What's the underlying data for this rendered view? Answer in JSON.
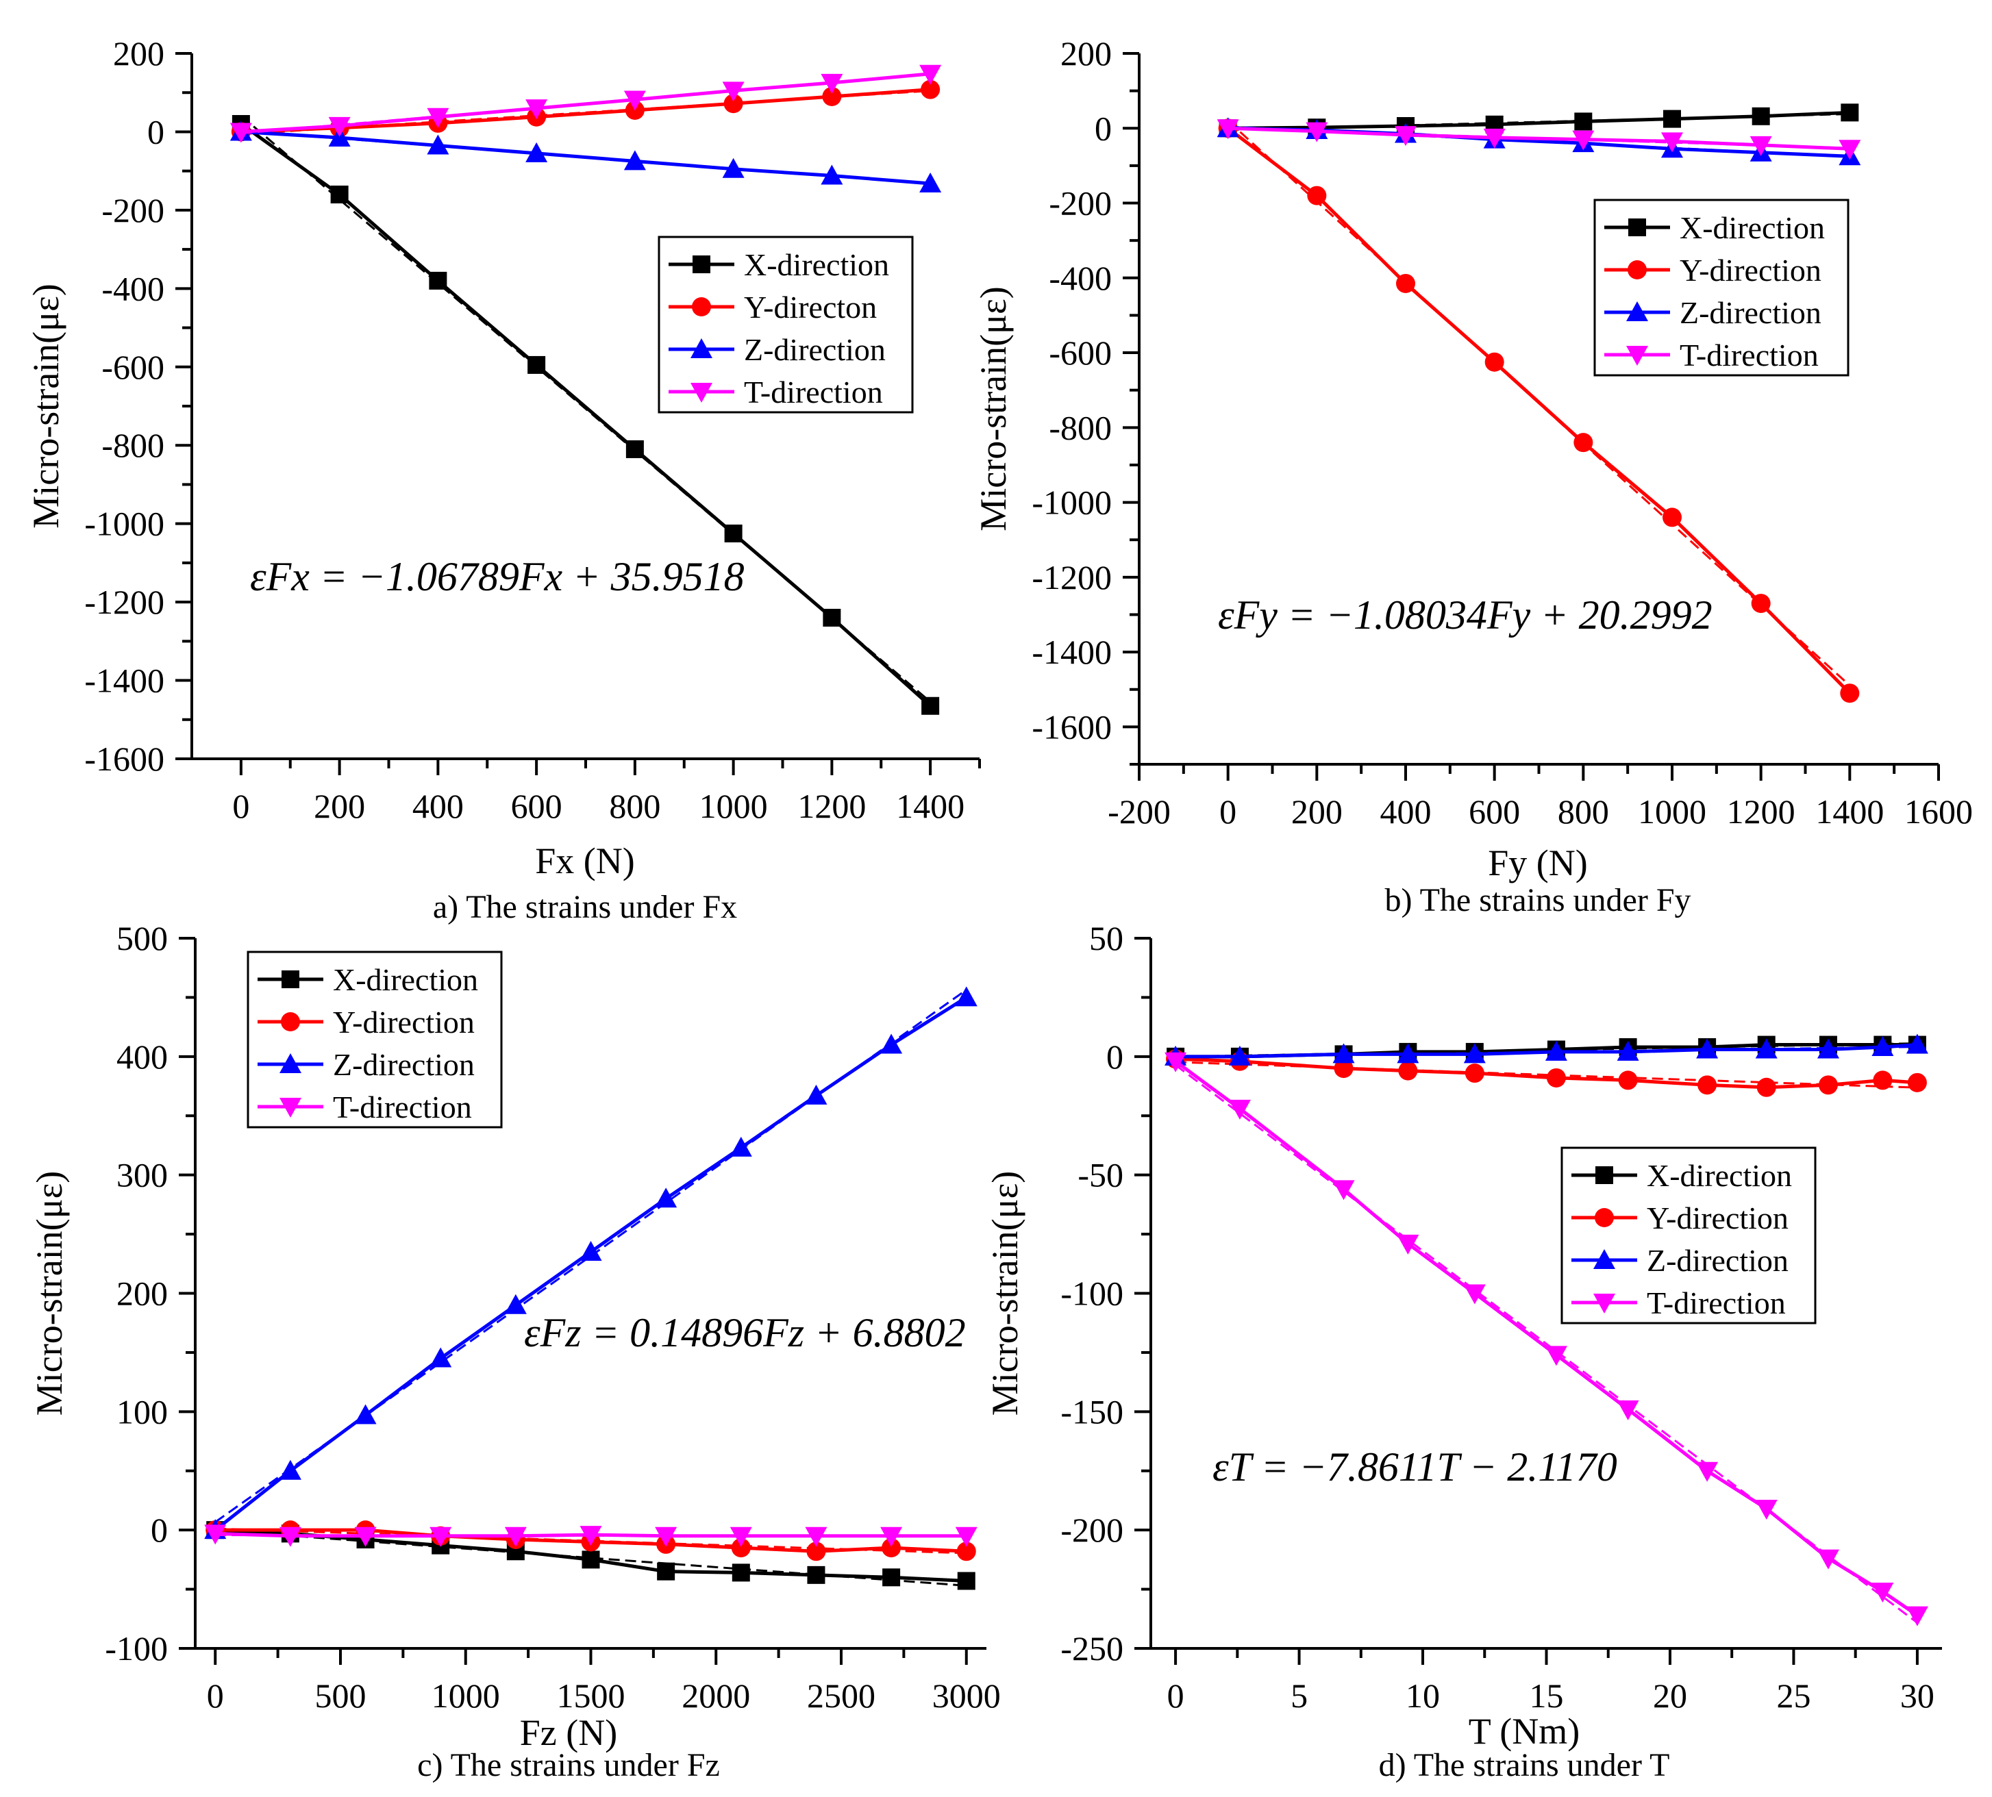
{
  "chart_data": [
    {
      "type": "line",
      "panel": "a",
      "caption": "a)  The strains under Fx",
      "xlabel": "Fx (N)",
      "ylabel": "Micro-strain(με)",
      "xlim": [
        -100,
        1500
      ],
      "ylim": [
        -1600,
        200
      ],
      "xticks": [
        0,
        200,
        400,
        600,
        800,
        1000,
        1200,
        1400
      ],
      "yticks": [
        200,
        0,
        -200,
        -400,
        -600,
        -800,
        -1000,
        -1200,
        -1400,
        -1600
      ],
      "equation": "εFx = −1.06789Fx + 35.9518",
      "legend_position": "middle-right",
      "series": [
        {
          "name": "X-direction",
          "color": "#000000",
          "marker": "square",
          "x": [
            0,
            200,
            400,
            600,
            800,
            1000,
            1200,
            1400
          ],
          "values": [
            20,
            -160,
            -380,
            -595,
            -810,
            -1025,
            -1240,
            -1465
          ]
        },
        {
          "name": "Y-directon",
          "color": "#ff0000",
          "marker": "circle",
          "x": [
            0,
            200,
            400,
            600,
            800,
            1000,
            1200,
            1400
          ],
          "values": [
            0,
            10,
            22,
            38,
            55,
            72,
            90,
            108
          ]
        },
        {
          "name": "Z-direction",
          "color": "#0000ff",
          "marker": "triangle-up",
          "x": [
            0,
            200,
            400,
            600,
            800,
            1000,
            1200,
            1400
          ],
          "values": [
            0,
            -15,
            -35,
            -55,
            -75,
            -95,
            -112,
            -132
          ]
        },
        {
          "name": "T-direction",
          "color": "#ff00ff",
          "marker": "triangle-down",
          "x": [
            0,
            200,
            400,
            600,
            800,
            1000,
            1200,
            1400
          ],
          "values": [
            0,
            15,
            38,
            60,
            82,
            105,
            125,
            148
          ]
        }
      ]
    },
    {
      "type": "line",
      "panel": "b",
      "caption": "b)  The strains under Fy",
      "xlabel": "Fy (N)",
      "ylabel": "Micro-strain(με)",
      "xlim": [
        -200,
        1600
      ],
      "ylim": [
        -1700,
        200
      ],
      "xticks": [
        -200,
        0,
        200,
        400,
        600,
        800,
        1000,
        1200,
        1400,
        1600
      ],
      "yticks": [
        200,
        0,
        -200,
        -400,
        -600,
        -800,
        -1000,
        -1200,
        -1400,
        -1600
      ],
      "equation": "εFy = −1.08034Fy + 20.2992",
      "legend_position": "top-right",
      "series": [
        {
          "name": "X-direction",
          "color": "#000000",
          "marker": "square",
          "x": [
            0,
            200,
            400,
            600,
            800,
            1000,
            1200,
            1400
          ],
          "values": [
            0,
            2,
            6,
            10,
            18,
            25,
            32,
            42
          ]
        },
        {
          "name": "Y-direction",
          "color": "#ff0000",
          "marker": "circle",
          "x": [
            0,
            200,
            400,
            600,
            800,
            1000,
            1200,
            1400
          ],
          "values": [
            0,
            -180,
            -415,
            -625,
            -840,
            -1040,
            -1270,
            -1510
          ]
        },
        {
          "name": "Z-direction",
          "color": "#0000ff",
          "marker": "triangle-up",
          "x": [
            0,
            200,
            400,
            600,
            800,
            1000,
            1200,
            1400
          ],
          "values": [
            0,
            -5,
            -15,
            -30,
            -40,
            -55,
            -65,
            -75
          ]
        },
        {
          "name": "T-direction",
          "color": "#ff00ff",
          "marker": "triangle-down",
          "x": [
            0,
            200,
            400,
            600,
            800,
            1000,
            1200,
            1400
          ],
          "values": [
            0,
            -8,
            -18,
            -25,
            -30,
            -35,
            -45,
            -55
          ]
        }
      ]
    },
    {
      "type": "line",
      "panel": "c",
      "caption": "c)  The strains under Fz",
      "xlabel": "Fz (N)",
      "ylabel": "Micro-strain(με)",
      "xlim": [
        -80,
        3080
      ],
      "ylim": [
        -100,
        500
      ],
      "xticks": [
        0,
        500,
        1000,
        1500,
        2000,
        2500,
        3000
      ],
      "yticks": [
        500,
        400,
        300,
        200,
        100,
        0,
        -100
      ],
      "equation": "εFz = 0.14896Fz + 6.8802",
      "legend_position": "top-left",
      "series": [
        {
          "name": "X-direction",
          "color": "#000000",
          "marker": "square",
          "x": [
            0,
            300,
            600,
            900,
            1200,
            1500,
            1800,
            2100,
            2400,
            2700,
            3000
          ],
          "values": [
            0,
            -3,
            -8,
            -13,
            -18,
            -25,
            -35,
            -36,
            -38,
            -40,
            -43
          ]
        },
        {
          "name": "Y-direction",
          "color": "#ff0000",
          "marker": "circle",
          "x": [
            0,
            300,
            600,
            900,
            1200,
            1500,
            1800,
            2100,
            2400,
            2700,
            3000
          ],
          "values": [
            0,
            0,
            0,
            -5,
            -8,
            -10,
            -12,
            -15,
            -18,
            -15,
            -18
          ]
        },
        {
          "name": "Z-direction",
          "color": "#0000ff",
          "marker": "triangle-up",
          "x": [
            0,
            300,
            600,
            900,
            1200,
            1500,
            1800,
            2100,
            2400,
            2700,
            3000
          ],
          "values": [
            0,
            50,
            97,
            145,
            190,
            235,
            280,
            323,
            367,
            410,
            450
          ]
        },
        {
          "name": "T-direction",
          "color": "#ff00ff",
          "marker": "triangle-down",
          "x": [
            0,
            300,
            600,
            900,
            1200,
            1500,
            1800,
            2100,
            2400,
            2700,
            3000
          ],
          "values": [
            -3,
            -5,
            -5,
            -5,
            -5,
            -4,
            -5,
            -5,
            -5,
            -5,
            -5
          ]
        }
      ]
    },
    {
      "type": "line",
      "panel": "d",
      "caption": "d)  The strains under T",
      "xlabel": "T (Nm)",
      "ylabel": "Micro-strain(με)",
      "xlim": [
        -1,
        31
      ],
      "ylim": [
        -250,
        50
      ],
      "xticks": [
        0,
        5,
        10,
        15,
        20,
        25,
        30
      ],
      "yticks": [
        50,
        0,
        -50,
        -100,
        -150,
        -200,
        -250
      ],
      "equation": "εT = −7.8611T − 2.1170",
      "legend_position": "middle-right",
      "series": [
        {
          "name": "X-direction",
          "color": "#000000",
          "marker": "square",
          "x": [
            0,
            2.6,
            6.8,
            9.4,
            12.1,
            15.4,
            18.3,
            21.5,
            23.9,
            26.4,
            28.6,
            30
          ],
          "values": [
            0,
            0,
            1,
            2,
            2,
            3,
            4,
            4,
            5,
            5,
            5,
            5
          ]
        },
        {
          "name": "Y-direction",
          "color": "#ff0000",
          "marker": "circle",
          "x": [
            0,
            2.6,
            6.8,
            9.4,
            12.1,
            15.4,
            18.3,
            21.5,
            23.9,
            26.4,
            28.6,
            30
          ],
          "values": [
            -1,
            -2,
            -5,
            -6,
            -7,
            -9,
            -10,
            -12,
            -13,
            -12,
            -10,
            -11
          ]
        },
        {
          "name": "Z-direction",
          "color": "#0000ff",
          "marker": "triangle-up",
          "x": [
            0,
            2.6,
            6.8,
            9.4,
            12.1,
            15.4,
            18.3,
            21.5,
            23.9,
            26.4,
            28.6,
            30
          ],
          "values": [
            0,
            0,
            1,
            1,
            1,
            2,
            2,
            3,
            3,
            3,
            4,
            5
          ]
        },
        {
          "name": "T-direction",
          "color": "#ff00ff",
          "marker": "triangle-down",
          "x": [
            0,
            2.6,
            6.8,
            9.4,
            12.1,
            15.4,
            18.3,
            21.5,
            23.9,
            26.4,
            28.6,
            30
          ],
          "values": [
            -2,
            -22,
            -56,
            -79,
            -100,
            -126,
            -149,
            -175,
            -191,
            -212,
            -226,
            -236
          ]
        }
      ]
    }
  ]
}
